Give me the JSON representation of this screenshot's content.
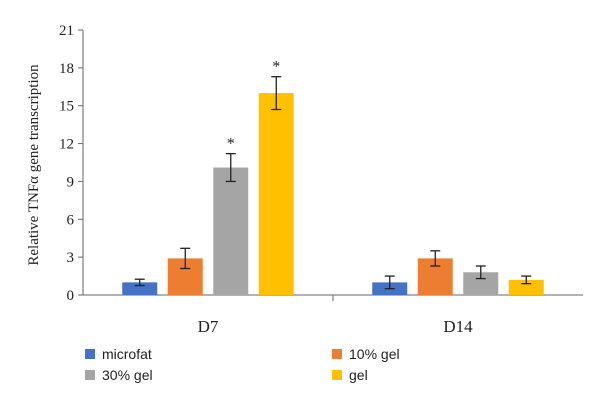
{
  "chart_data": {
    "type": "bar",
    "title": "",
    "xlabel": "",
    "ylabel": "Relative TNFα gene transcription",
    "ylim": [
      0,
      21
    ],
    "yticks": [
      0,
      3,
      6,
      9,
      12,
      15,
      18,
      21
    ],
    "grid": false,
    "legend_position": "bottom",
    "categories": [
      "D7",
      "D14"
    ],
    "series": [
      {
        "name": "microfat",
        "color": "#4472C4",
        "values": [
          1.0,
          1.0
        ],
        "errors": [
          0.25,
          0.5
        ],
        "significant": [
          false,
          false
        ]
      },
      {
        "name": "10% gel",
        "color": "#ED7D31",
        "values": [
          2.9,
          2.9
        ],
        "errors": [
          0.8,
          0.6
        ],
        "significant": [
          false,
          false
        ]
      },
      {
        "name": "30% gel",
        "color": "#A5A5A5",
        "values": [
          10.1,
          1.8
        ],
        "errors": [
          1.1,
          0.5
        ],
        "significant": [
          true,
          false
        ]
      },
      {
        "name": "gel",
        "color": "#FFC000",
        "values": [
          16.0,
          1.2
        ],
        "errors": [
          1.3,
          0.3
        ],
        "significant": [
          true,
          false
        ]
      }
    ],
    "significance_mark": "*"
  }
}
